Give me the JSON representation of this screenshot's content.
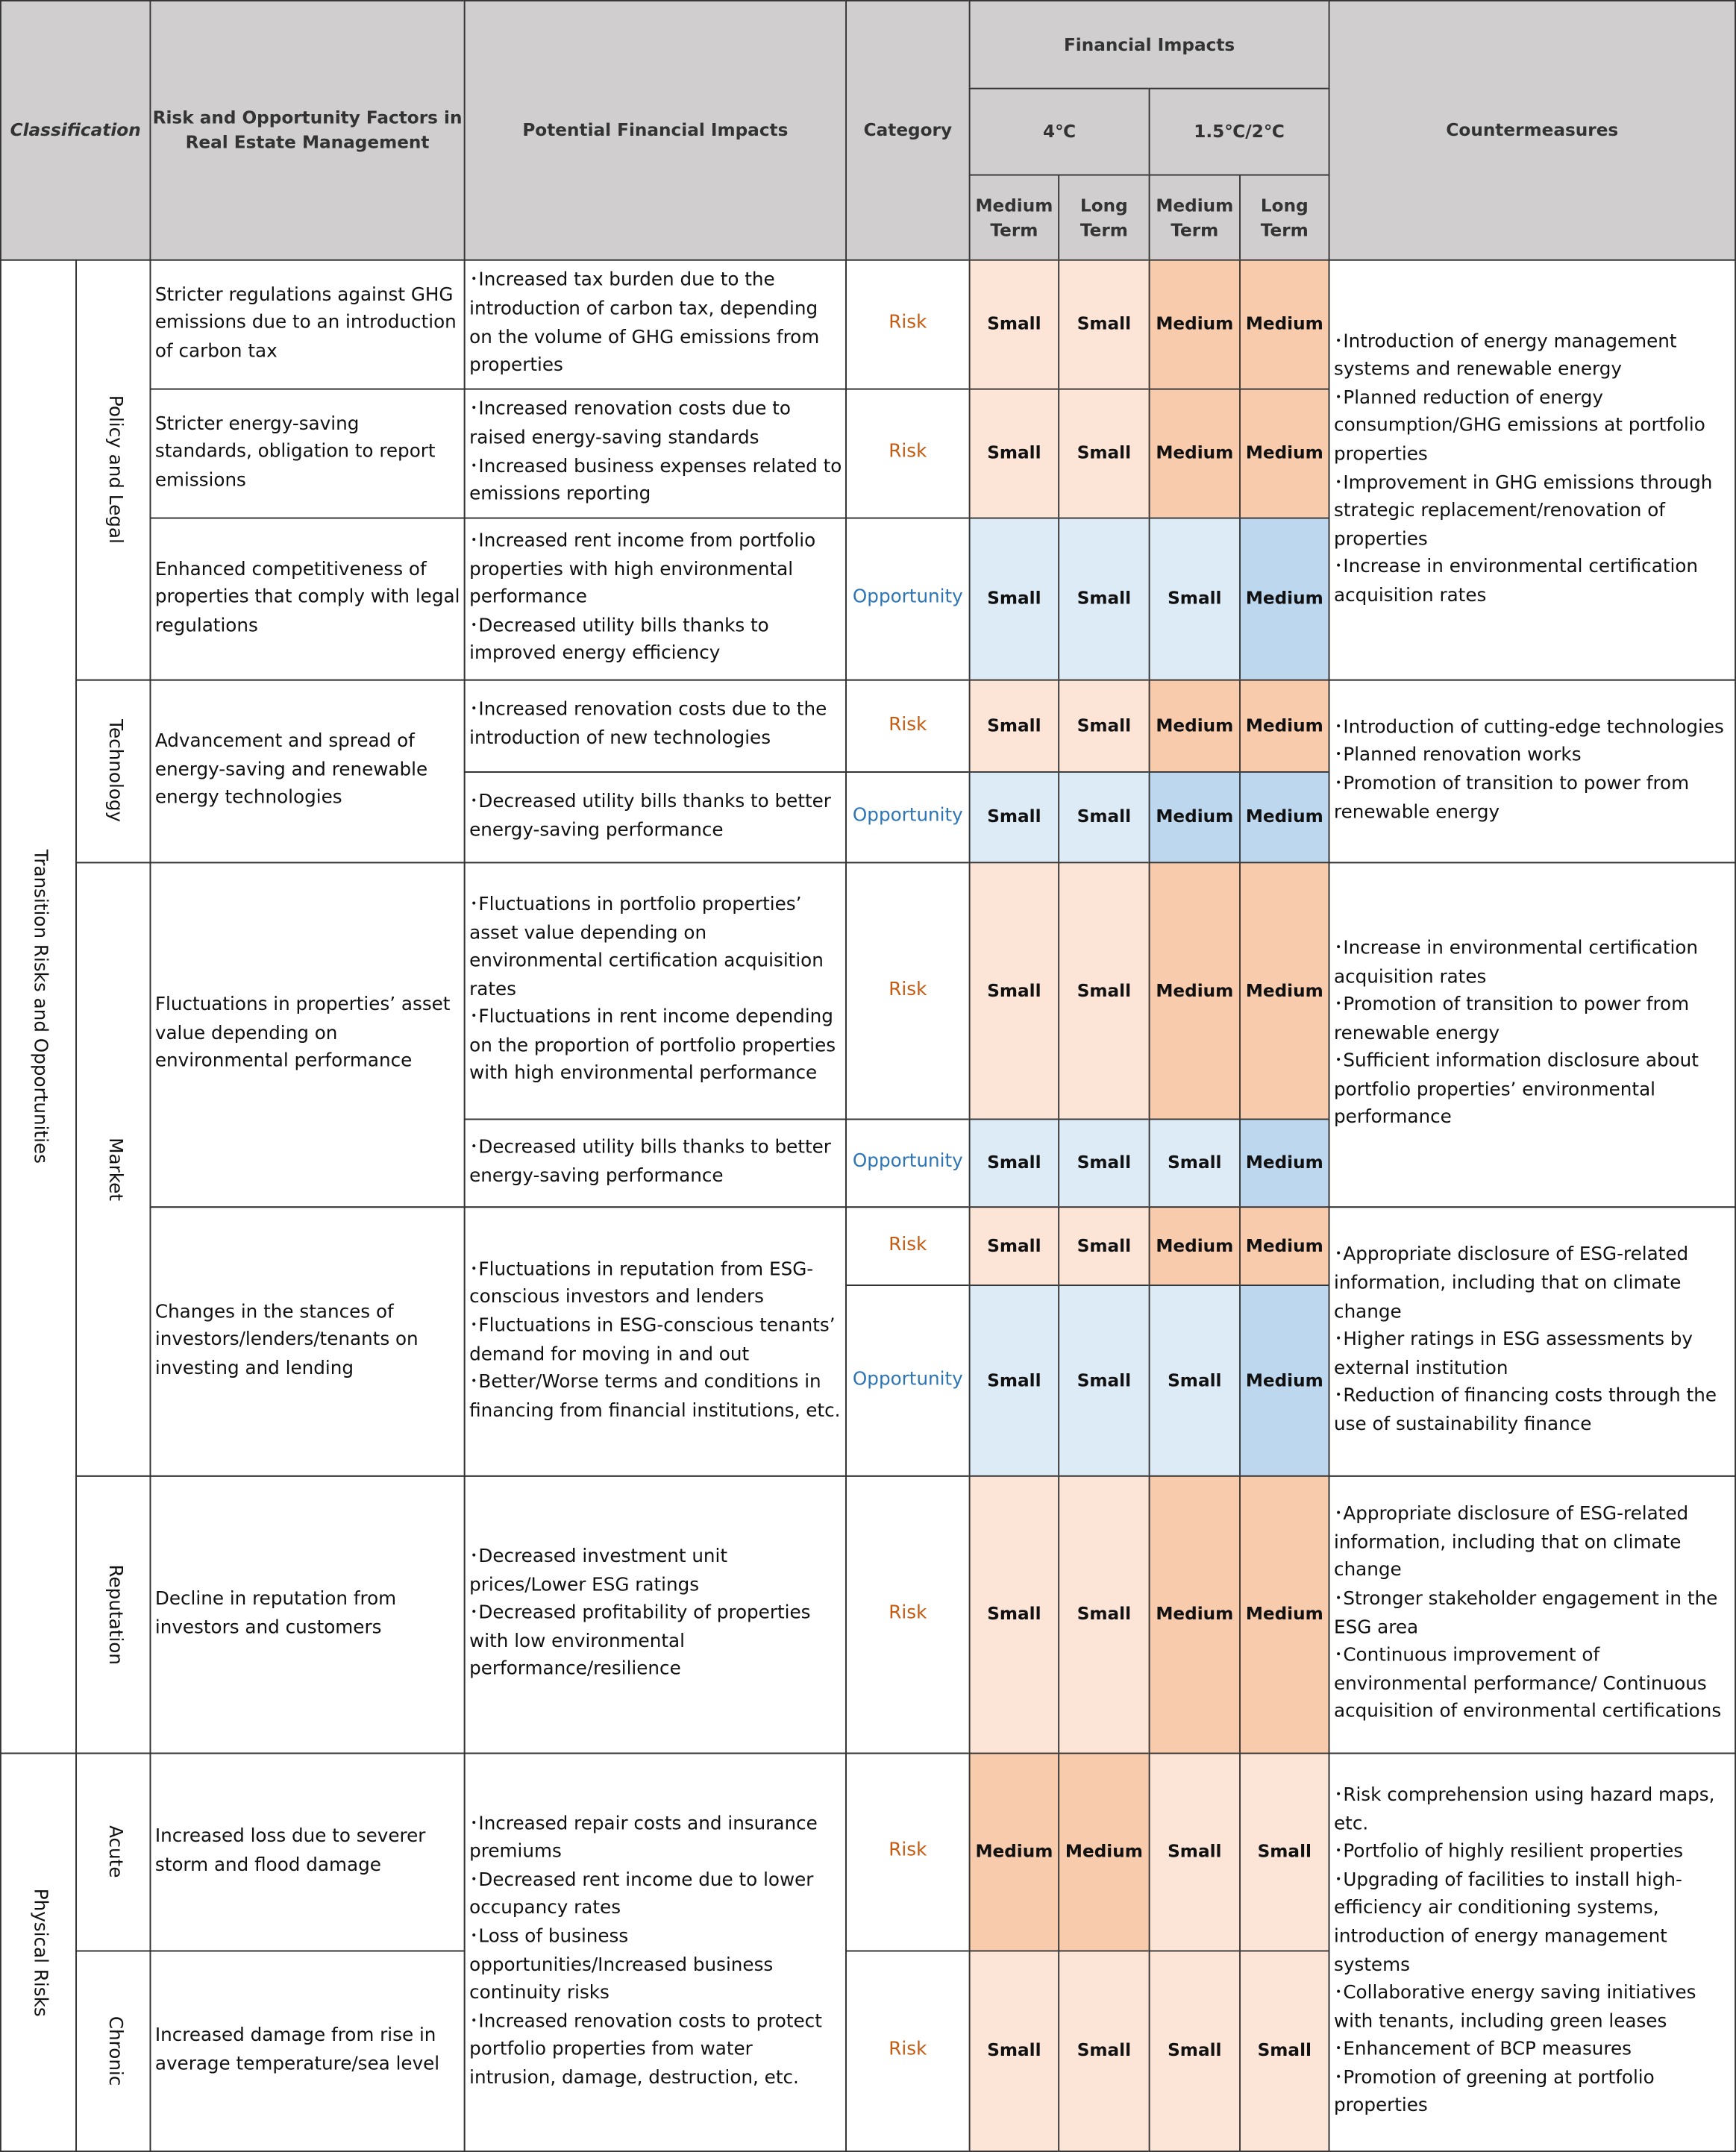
{
  "header": {
    "classification": "Classification",
    "factors": "Risk and Opportunity Factors in Real Estate Management",
    "impacts": "Potential Financial Impacts",
    "category": "Category",
    "financial_impacts": "Financial Impacts",
    "scenarios": [
      "4℃",
      "1.5℃/2℃"
    ],
    "terms": [
      "Medium Term",
      "Long Term",
      "Medium Term",
      "Long Term"
    ],
    "countermeasures": "Countermeasures"
  },
  "classes": [
    "Transition Risks and Opportunities",
    "Physical Risks"
  ],
  "subclasses": [
    "Policy and Legal",
    "Technology",
    "Market",
    "Reputation",
    "Acute",
    "Chronic"
  ],
  "factors": [
    "Stricter regulations against GHG emissions due to an introduction of carbon tax",
    "Stricter energy-saving standards, obligation to report emissions",
    "Enhanced competitiveness of properties that comply with legal regulations",
    "Advancement and spread of energy-saving and renewable energy technologies",
    "Fluctuations in properties’ asset value depending on environmental performance",
    "Changes in the stances of investors/lenders/tenants on investing and lending",
    "Decline in reputation from investors and customers",
    "Increased loss due to severer storm and flood damage",
    "Increased damage from rise in average temperature/sea level"
  ],
  "impacts": [
    [
      "･Increased tax burden due to the introduction of carbon tax, depending on the volume of GHG emissions from properties"
    ],
    [
      "･Increased renovation costs due to raised energy-saving standards",
      "･Increased business expenses related to emissions reporting"
    ],
    [
      "･Increased rent income from portfolio properties with high environmental performance",
      "･Decreased utility bills thanks to improved energy efficiency"
    ],
    [
      "･Increased renovation costs due to the introduction of new technologies"
    ],
    [
      "･Decreased utility bills thanks to better energy-saving performance"
    ],
    [
      "･Fluctuations in portfolio properties’ asset value depending on environmental certification acquisition rates",
      "･Fluctuations in rent income depending on the proportion of portfolio properties with high environmental performance"
    ],
    [
      "･Decreased utility bills thanks to better energy-saving performance"
    ],
    [
      "･Fluctuations in reputation from ESG-conscious investors and lenders",
      "･Fluctuations in ESG-conscious tenants’ demand for moving in and out",
      "･Better/Worse terms and conditions in financing from financial institutions, etc."
    ],
    [
      "･Decreased investment unit prices/Lower ESG ratings",
      "･Decreased profitability of properties with low environmental performance/resilience"
    ],
    [
      "･Increased repair costs and insurance premiums",
      "･Decreased rent income due to lower occupancy rates",
      "･Loss of business opportunities/Increased business continuity risks",
      "･Increased renovation costs to protect portfolio properties from water intrusion, damage, destruction, etc."
    ]
  ],
  "countermeasures": [
    [
      "･Introduction of energy management systems and renewable energy",
      "･Planned reduction of energy consumption/GHG emissions at portfolio properties",
      "･Improvement in GHG emissions through strategic replacement/renovation of properties",
      "･Increase in environmental certification acquisition rates"
    ],
    [
      "･Introduction of cutting-edge technologies",
      "･Planned renovation works",
      "･Promotion of transition to power from renewable energy"
    ],
    [
      "･Increase in environmental certification acquisition rates",
      "･Promotion of transition to power from renewable energy",
      "･Sufficient information disclosure about portfolio properties’ environmental performance"
    ],
    [
      "･Appropriate disclosure of ESG-related information, including that on climate change",
      "･Higher ratings in ESG assessments by external institution",
      "･Reduction of financing costs through the use of sustainability finance"
    ],
    [
      "･Appropriate disclosure of ESG-related information, including that on climate change",
      "･Stronger stakeholder engagement in the ESG area",
      "･Continuous improvement of environmental performance/ Continuous acquisition of environmental certifications"
    ],
    [
      "･Risk comprehension using hazard maps, etc.",
      "･Portfolio of highly resilient properties",
      "･Upgrading of facilities to install high-efficiency air conditioning systems, introduction of energy management systems",
      "･Collaborative energy saving initiatives with tenants, including green leases",
      "･Enhancement of BCP measures",
      "･Promotion of greening at portfolio properties"
    ]
  ],
  "rows": [
    {
      "category": "Risk",
      "levels": [
        "Small",
        "Small",
        "Medium",
        "Medium"
      ]
    },
    {
      "category": "Risk",
      "levels": [
        "Small",
        "Small",
        "Medium",
        "Medium"
      ]
    },
    {
      "category": "Opportunity",
      "levels": [
        "Small",
        "Small",
        "Small",
        "Medium"
      ]
    },
    {
      "category": "Risk",
      "levels": [
        "Small",
        "Small",
        "Medium",
        "Medium"
      ]
    },
    {
      "category": "Opportunity",
      "levels": [
        "Small",
        "Small",
        "Medium",
        "Medium"
      ]
    },
    {
      "category": "Risk",
      "levels": [
        "Small",
        "Small",
        "Medium",
        "Medium"
      ]
    },
    {
      "category": "Opportunity",
      "levels": [
        "Small",
        "Small",
        "Small",
        "Medium"
      ]
    },
    {
      "category": "Risk",
      "levels": [
        "Small",
        "Small",
        "Medium",
        "Medium"
      ]
    },
    {
      "category": "Opportunity",
      "levels": [
        "Small",
        "Small",
        "Small",
        "Medium"
      ]
    },
    {
      "category": "Risk",
      "levels": [
        "Small",
        "Small",
        "Medium",
        "Medium"
      ]
    },
    {
      "category": "Risk",
      "levels": [
        "Medium",
        "Medium",
        "Small",
        "Small"
      ]
    },
    {
      "category": "Risk",
      "levels": [
        "Small",
        "Small",
        "Small",
        "Small"
      ]
    }
  ],
  "colors": {
    "Risk": {
      "text": "#c55a11",
      "Small": "#fce4d6",
      "Medium": "#f8cbad"
    },
    "Opportunity": {
      "text": "#2e75b6",
      "Small": "#ddebf7",
      "Medium": "#bdd7ee"
    },
    "header": "#d0cece"
  }
}
